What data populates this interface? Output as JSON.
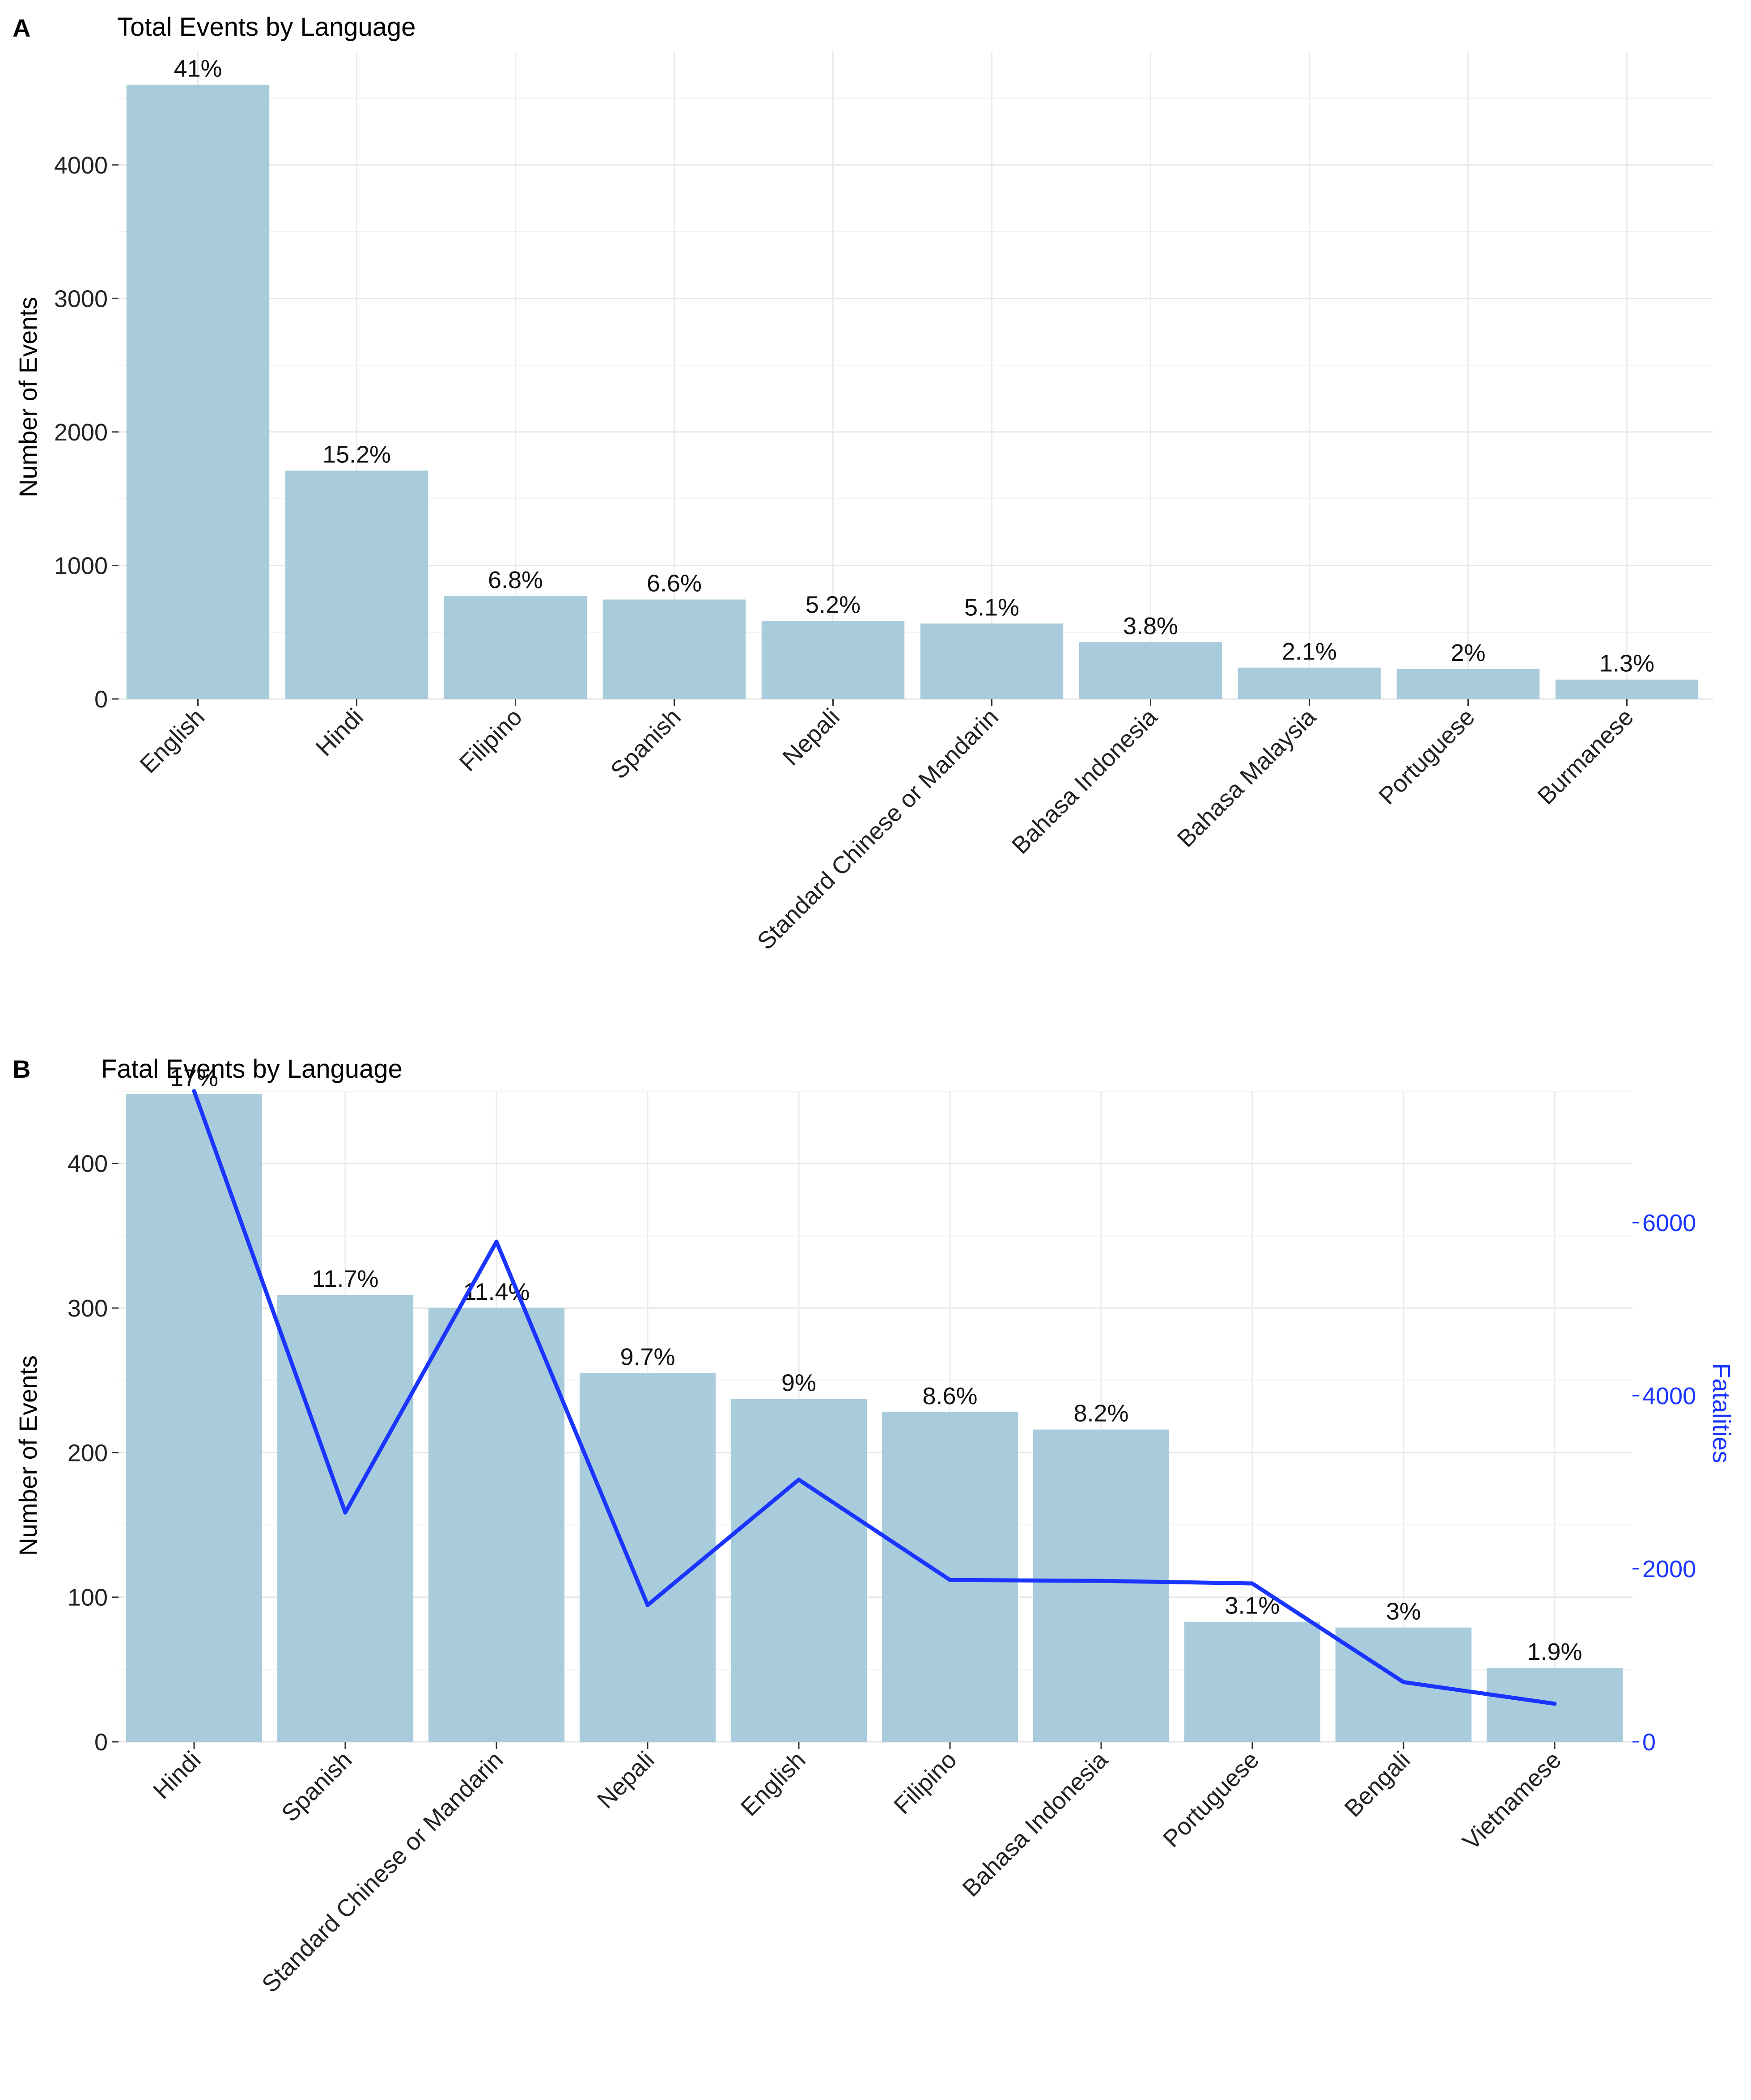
{
  "chart_data": [
    {
      "type": "bar",
      "panel_label": "A",
      "title": "Total Events by Language",
      "xlabel": "",
      "ylabel": "Number of Events",
      "ylim": [
        0,
        4850
      ],
      "y_ticks": [
        0,
        1000,
        2000,
        3000,
        4000
      ],
      "grid": true,
      "bar_color": "#a9ccdc",
      "categories": [
        "English",
        "Hindi",
        "Filipino",
        "Spanish",
        "Nepali",
        "Standard Chinese or Mandarin",
        "Bahasa Indonesia",
        "Bahasa Malaysia",
        "Portuguese",
        "Burmanese"
      ],
      "values": [
        4600,
        1710,
        770,
        745,
        585,
        565,
        425,
        235,
        225,
        145
      ],
      "labels": [
        "41%",
        "15.2%",
        "6.8%",
        "6.6%",
        "5.2%",
        "5.1%",
        "3.8%",
        "2.1%",
        "2%",
        "1.3%"
      ]
    },
    {
      "type": "bar",
      "panel_label": "B",
      "title": "Fatal Events by Language",
      "xlabel": "",
      "ylabel": "Number of Events",
      "ylim": [
        0,
        450
      ],
      "y_ticks": [
        0,
        100,
        200,
        300,
        400
      ],
      "grid": true,
      "bar_color": "#a9ccdc",
      "categories": [
        "Hindi",
        "Spanish",
        "Standard Chinese or Mandarin",
        "Nepali",
        "English",
        "Filipino",
        "Bahasa Indonesia",
        "Portuguese",
        "Bengali",
        "Vietnamese"
      ],
      "values": [
        448,
        309,
        300,
        255,
        237,
        228,
        216,
        83,
        79,
        51
      ],
      "labels": [
        "17%",
        "11.7%",
        "11.4%",
        "9.7%",
        "9%",
        "8.6%",
        "8.2%",
        "3.1%",
        "3%",
        "1.9%"
      ],
      "secondary_axis": {
        "label": "Fatalities",
        "color": "#1a35ff",
        "ylim": [
          0,
          7520
        ],
        "ticks": [
          0,
          2000,
          4000,
          6000
        ]
      },
      "line_series": {
        "name": "Fatalities",
        "color": "#1a35ff",
        "values": [
          7520,
          2650,
          5780,
          1580,
          3030,
          1870,
          1860,
          1830,
          690,
          440
        ]
      }
    }
  ]
}
